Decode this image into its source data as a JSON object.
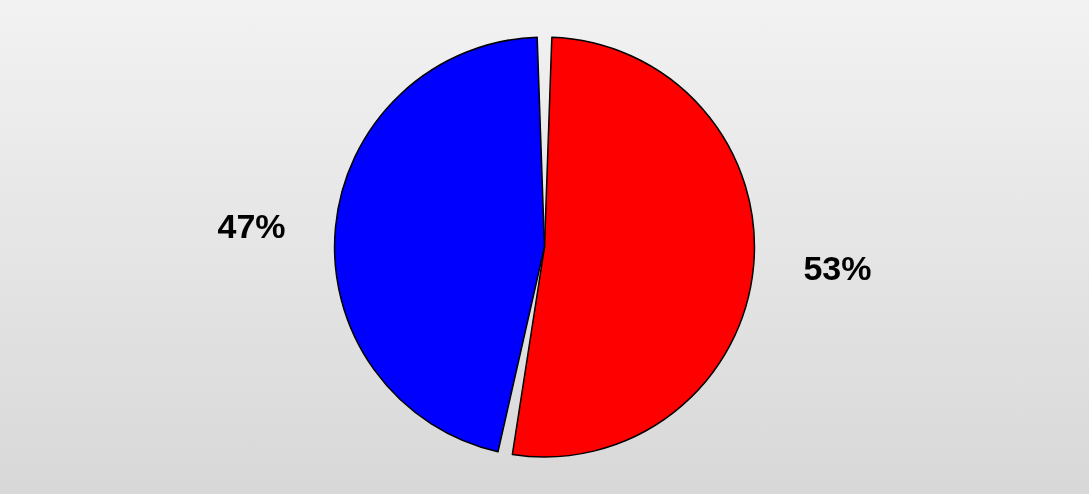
{
  "chart_data": {
    "type": "pie",
    "categories": [
      null,
      null
    ],
    "values": [
      53,
      47
    ],
    "colors": [
      "#ff0000",
      "#0000ff"
    ],
    "value_labels": [
      "53%",
      "47%"
    ]
  }
}
